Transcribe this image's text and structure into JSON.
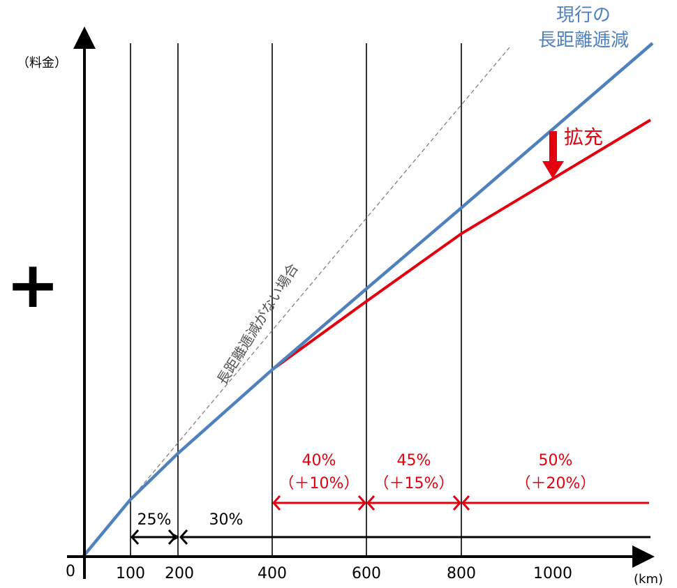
{
  "y_axis_label": "（料金）",
  "x_axis_label": "(km)",
  "plus_symbol": "+",
  "x_ticks": [
    {
      "value": 0,
      "label": "0"
    },
    {
      "value": 100,
      "label": "100"
    },
    {
      "value": 200,
      "label": "200"
    },
    {
      "value": 400,
      "label": "400"
    },
    {
      "value": 600,
      "label": "600"
    },
    {
      "value": 800,
      "label": "800"
    },
    {
      "value": 1000,
      "label": "1000"
    }
  ],
  "current_line_label_line1": "現行の",
  "current_line_label_line2": "長距離逓減",
  "no_discount_label": "長距離逓減がない場合",
  "expansion_label": "拡充",
  "black_discounts": [
    {
      "from": 100,
      "to": 200,
      "label": "25%"
    },
    {
      "from": 200,
      "to": 1200,
      "label": "30%"
    }
  ],
  "red_discounts": [
    {
      "from": 400,
      "to": 600,
      "rate": "40%",
      "delta": "（＋10%）"
    },
    {
      "from": 600,
      "to": 800,
      "rate": "45%",
      "delta": "（＋15%）"
    },
    {
      "from": 800,
      "to": 1200,
      "rate": "50%",
      "delta": "（＋20%）"
    }
  ],
  "colors": {
    "current": "#4f81bd",
    "expanded": "#e3000f",
    "no_discount": "#808080",
    "axis": "#000000"
  }
}
